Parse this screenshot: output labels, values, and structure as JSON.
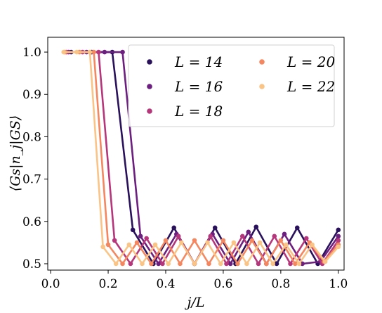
{
  "chart_data": {
    "type": "line",
    "title": "",
    "xlabel": "j/L",
    "ylabel": "⟨Gs|n_j|GS⟩",
    "xlim": [
      -0.01,
      1.02
    ],
    "ylim": [
      0.485,
      1.035
    ],
    "xticks": [
      "0.0",
      "0.2",
      "0.4",
      "0.6",
      "0.8",
      "1.0"
    ],
    "yticks": [
      "0.5",
      "0.6",
      "0.7",
      "0.8",
      "0.9",
      "1.0"
    ],
    "grid": false,
    "legend_position": "top-right",
    "series": [
      {
        "name": "L = 14",
        "color": "#2a115c",
        "x": [
          0.0714,
          0.1429,
          0.2143,
          0.2857,
          0.3571,
          0.4286,
          0.5,
          0.5714,
          0.6429,
          0.7143,
          0.7857,
          0.8571,
          0.9286,
          1.0
        ],
        "y": [
          1.0,
          1.0,
          1.0,
          0.58,
          0.5,
          0.585,
          0.5,
          0.585,
          0.5,
          0.587,
          0.5,
          0.585,
          0.5,
          0.58
        ]
      },
      {
        "name": "L = 16",
        "color": "#6c1f7f",
        "x": [
          0.0625,
          0.125,
          0.1875,
          0.25,
          0.3125,
          0.375,
          0.4375,
          0.5,
          0.5625,
          0.625,
          0.6875,
          0.75,
          0.8125,
          0.875,
          0.9375,
          1.0
        ],
        "y": [
          1.0,
          1.0,
          1.0,
          1.0,
          0.565,
          0.5,
          0.57,
          0.5,
          0.57,
          0.5,
          0.575,
          0.5,
          0.57,
          0.5,
          0.505,
          0.565
        ]
      },
      {
        "name": "L = 18",
        "color": "#b5367a",
        "x": [
          0.0556,
          0.1111,
          0.1667,
          0.2222,
          0.2778,
          0.3333,
          0.3889,
          0.4444,
          0.5,
          0.5556,
          0.6111,
          0.6667,
          0.7222,
          0.7778,
          0.8333,
          0.8889,
          0.9444,
          1.0
        ],
        "y": [
          1.0,
          1.0,
          1.0,
          0.555,
          0.5,
          0.56,
          0.5,
          0.565,
          0.5,
          0.565,
          0.5,
          0.565,
          0.5,
          0.565,
          0.5,
          0.56,
          0.5,
          0.555
        ]
      },
      {
        "name": "L = 20",
        "color": "#f4875f",
        "x": [
          0.05,
          0.1,
          0.15,
          0.2,
          0.25,
          0.3,
          0.35,
          0.4,
          0.45,
          0.5,
          0.55,
          0.6,
          0.65,
          0.7,
          0.75,
          0.8,
          0.85,
          0.9,
          0.95,
          1.0
        ],
        "y": [
          1.0,
          1.0,
          1.0,
          0.545,
          0.5,
          0.55,
          0.5,
          0.555,
          0.5,
          0.555,
          0.5,
          0.555,
          0.5,
          0.555,
          0.5,
          0.555,
          0.5,
          0.55,
          0.505,
          0.545
        ]
      },
      {
        "name": "L = 22",
        "color": "#fac487",
        "x": [
          0.0455,
          0.0909,
          0.1364,
          0.1818,
          0.2273,
          0.2727,
          0.3182,
          0.3636,
          0.4091,
          0.4545,
          0.5,
          0.5455,
          0.5909,
          0.6364,
          0.6818,
          0.7273,
          0.7727,
          0.8182,
          0.8636,
          0.9091,
          0.9545,
          1.0
        ],
        "y": [
          1.0,
          1.0,
          1.0,
          0.54,
          0.5,
          0.545,
          0.5,
          0.545,
          0.5,
          0.55,
          0.5,
          0.55,
          0.5,
          0.55,
          0.5,
          0.55,
          0.5,
          0.545,
          0.5,
          0.545,
          0.505,
          0.54
        ]
      }
    ]
  }
}
